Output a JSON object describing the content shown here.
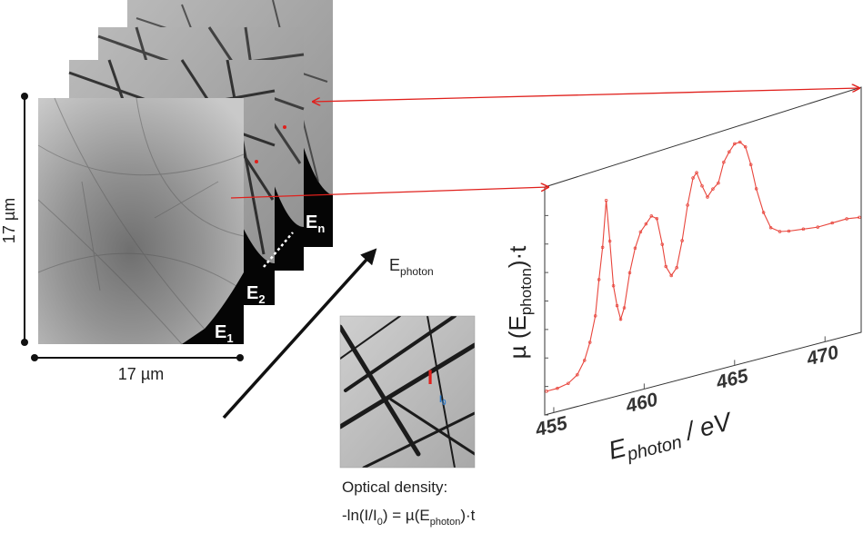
{
  "stack": {
    "width_label": "17 µm",
    "height_label": "17 µm",
    "frames": [
      {
        "name": "E",
        "sub": "1"
      },
      {
        "name": "E",
        "sub": "2"
      },
      {
        "name": "E",
        "sub": "n"
      }
    ]
  },
  "energy_axis": {
    "main": "E",
    "sub": "photon"
  },
  "inset": {
    "marker_I": "I",
    "marker_I0_main": "I",
    "marker_I0_sub": "0",
    "caption_line1": "Optical density:",
    "caption_line2_parts": [
      "-ln(I/I",
      "0",
      ") = µ(E",
      "photon",
      ")·t"
    ]
  },
  "colors": {
    "spectrum": "#e8453c",
    "arrow": "#e0201c",
    "I_marker": "#e0201c",
    "I0_marker": "#2f7fd0"
  },
  "chart_data": {
    "type": "line",
    "xlabel_parts": [
      "E",
      "photon",
      " / eV"
    ],
    "ylabel_parts": [
      "µ (E",
      "photon",
      ")·t"
    ],
    "xlim": [
      454.5,
      472
    ],
    "xticks": [
      "455",
      "460",
      "465",
      "470"
    ],
    "series": [
      {
        "values": [
          [
            454.6,
            0.08
          ],
          [
            455.2,
            0.08
          ],
          [
            455.8,
            0.09
          ],
          [
            456.3,
            0.12
          ],
          [
            456.7,
            0.18
          ],
          [
            457.0,
            0.26
          ],
          [
            457.3,
            0.38
          ],
          [
            457.5,
            0.55
          ],
          [
            457.7,
            0.7
          ],
          [
            457.9,
            0.92
          ],
          [
            458.1,
            0.72
          ],
          [
            458.3,
            0.5
          ],
          [
            458.5,
            0.4
          ],
          [
            458.7,
            0.33
          ],
          [
            458.9,
            0.38
          ],
          [
            459.2,
            0.54
          ],
          [
            459.5,
            0.65
          ],
          [
            459.8,
            0.72
          ],
          [
            460.1,
            0.75
          ],
          [
            460.4,
            0.78
          ],
          [
            460.7,
            0.76
          ],
          [
            461.0,
            0.63
          ],
          [
            461.2,
            0.52
          ],
          [
            461.5,
            0.47
          ],
          [
            461.8,
            0.5
          ],
          [
            462.1,
            0.62
          ],
          [
            462.4,
            0.78
          ],
          [
            462.7,
            0.9
          ],
          [
            462.9,
            0.92
          ],
          [
            463.2,
            0.85
          ],
          [
            463.5,
            0.79
          ],
          [
            463.8,
            0.82
          ],
          [
            464.1,
            0.84
          ],
          [
            464.4,
            0.93
          ],
          [
            464.7,
            0.97
          ],
          [
            465.0,
            1.0
          ],
          [
            465.3,
            1.0
          ],
          [
            465.6,
            0.97
          ],
          [
            465.9,
            0.88
          ],
          [
            466.2,
            0.76
          ],
          [
            466.6,
            0.64
          ],
          [
            467.0,
            0.56
          ],
          [
            467.5,
            0.53
          ],
          [
            468.0,
            0.52
          ],
          [
            468.8,
            0.51
          ],
          [
            469.6,
            0.5
          ],
          [
            470.4,
            0.5
          ],
          [
            471.2,
            0.5
          ],
          [
            471.9,
            0.49
          ]
        ]
      }
    ]
  }
}
